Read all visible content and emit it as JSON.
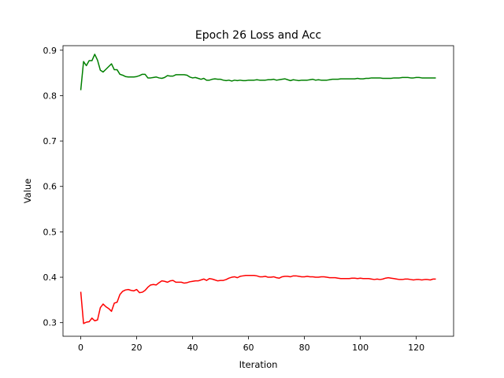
{
  "chart_data": {
    "type": "line",
    "title": "Epoch 26 Loss and Acc",
    "xlabel": "Iteration",
    "ylabel": "Value",
    "xlim": [
      -6.35,
      133.35
    ],
    "ylim": [
      0.27,
      0.91
    ],
    "xticks": [
      0,
      20,
      40,
      60,
      80,
      100,
      120
    ],
    "xtick_labels": [
      "0",
      "20",
      "40",
      "60",
      "80",
      "100",
      "120"
    ],
    "yticks": [
      0.3,
      0.4,
      0.5,
      0.6,
      0.7,
      0.8,
      0.9
    ],
    "ytick_labels": [
      "0.3",
      "0.4",
      "0.5",
      "0.6",
      "0.7",
      "0.8",
      "0.9"
    ],
    "grid": false,
    "legend": "none",
    "x": [
      0,
      1,
      2,
      3,
      4,
      5,
      6,
      7,
      8,
      9,
      10,
      11,
      12,
      13,
      14,
      15,
      16,
      17,
      18,
      19,
      20,
      21,
      22,
      23,
      24,
      25,
      26,
      27,
      28,
      29,
      30,
      31,
      32,
      33,
      34,
      35,
      36,
      37,
      38,
      39,
      40,
      41,
      42,
      43,
      44,
      45,
      46,
      47,
      48,
      49,
      50,
      51,
      52,
      53,
      54,
      55,
      56,
      57,
      58,
      59,
      60,
      61,
      62,
      63,
      64,
      65,
      66,
      67,
      68,
      69,
      70,
      71,
      72,
      73,
      74,
      75,
      76,
      77,
      78,
      79,
      80,
      81,
      82,
      83,
      84,
      85,
      86,
      87,
      88,
      89,
      90,
      91,
      92,
      93,
      94,
      95,
      96,
      97,
      98,
      99,
      100,
      101,
      102,
      103,
      104,
      105,
      106,
      107,
      108,
      109,
      110,
      111,
      112,
      113,
      114,
      115,
      116,
      117,
      118,
      119,
      120,
      121,
      122,
      123,
      124,
      125,
      126,
      127
    ],
    "series": [
      {
        "color": "#008000",
        "values": [
          0.812,
          0.875,
          0.866,
          0.877,
          0.877,
          0.891,
          0.878,
          0.856,
          0.852,
          0.858,
          0.864,
          0.87,
          0.857,
          0.857,
          0.847,
          0.845,
          0.842,
          0.841,
          0.841,
          0.841,
          0.842,
          0.844,
          0.847,
          0.847,
          0.839,
          0.839,
          0.84,
          0.841,
          0.839,
          0.838,
          0.84,
          0.844,
          0.843,
          0.843,
          0.846,
          0.846,
          0.846,
          0.846,
          0.845,
          0.841,
          0.839,
          0.84,
          0.838,
          0.836,
          0.838,
          0.834,
          0.834,
          0.836,
          0.837,
          0.836,
          0.836,
          0.834,
          0.833,
          0.834,
          0.832,
          0.834,
          0.833,
          0.834,
          0.833,
          0.833,
          0.834,
          0.834,
          0.834,
          0.835,
          0.834,
          0.834,
          0.834,
          0.835,
          0.835,
          0.836,
          0.834,
          0.835,
          0.836,
          0.837,
          0.835,
          0.833,
          0.835,
          0.834,
          0.833,
          0.834,
          0.834,
          0.834,
          0.835,
          0.836,
          0.834,
          0.835,
          0.834,
          0.834,
          0.834,
          0.835,
          0.836,
          0.836,
          0.836,
          0.837,
          0.837,
          0.837,
          0.837,
          0.837,
          0.837,
          0.838,
          0.837,
          0.837,
          0.838,
          0.838,
          0.839,
          0.839,
          0.839,
          0.839,
          0.838,
          0.838,
          0.838,
          0.838,
          0.839,
          0.839,
          0.839,
          0.84,
          0.84,
          0.84,
          0.839,
          0.839,
          0.84,
          0.84,
          0.839,
          0.839,
          0.839,
          0.839,
          0.839,
          0.839
        ]
      },
      {
        "color": "#ff0000",
        "values": [
          0.368,
          0.298,
          0.301,
          0.302,
          0.31,
          0.304,
          0.306,
          0.333,
          0.341,
          0.335,
          0.331,
          0.325,
          0.343,
          0.345,
          0.362,
          0.369,
          0.372,
          0.373,
          0.371,
          0.37,
          0.373,
          0.366,
          0.367,
          0.371,
          0.378,
          0.383,
          0.384,
          0.383,
          0.388,
          0.392,
          0.391,
          0.389,
          0.392,
          0.393,
          0.389,
          0.389,
          0.389,
          0.387,
          0.388,
          0.39,
          0.391,
          0.392,
          0.392,
          0.394,
          0.396,
          0.393,
          0.397,
          0.396,
          0.394,
          0.392,
          0.393,
          0.393,
          0.395,
          0.398,
          0.4,
          0.401,
          0.399,
          0.402,
          0.403,
          0.404,
          0.404,
          0.404,
          0.404,
          0.403,
          0.401,
          0.401,
          0.402,
          0.4,
          0.4,
          0.401,
          0.399,
          0.398,
          0.401,
          0.402,
          0.402,
          0.401,
          0.403,
          0.403,
          0.402,
          0.401,
          0.401,
          0.402,
          0.401,
          0.401,
          0.4,
          0.4,
          0.401,
          0.401,
          0.4,
          0.399,
          0.399,
          0.399,
          0.398,
          0.397,
          0.397,
          0.397,
          0.397,
          0.398,
          0.398,
          0.397,
          0.398,
          0.397,
          0.397,
          0.397,
          0.396,
          0.395,
          0.396,
          0.395,
          0.396,
          0.398,
          0.399,
          0.398,
          0.397,
          0.396,
          0.395,
          0.395,
          0.396,
          0.396,
          0.395,
          0.394,
          0.395,
          0.395,
          0.394,
          0.395,
          0.395,
          0.394,
          0.396,
          0.396
        ]
      }
    ]
  }
}
